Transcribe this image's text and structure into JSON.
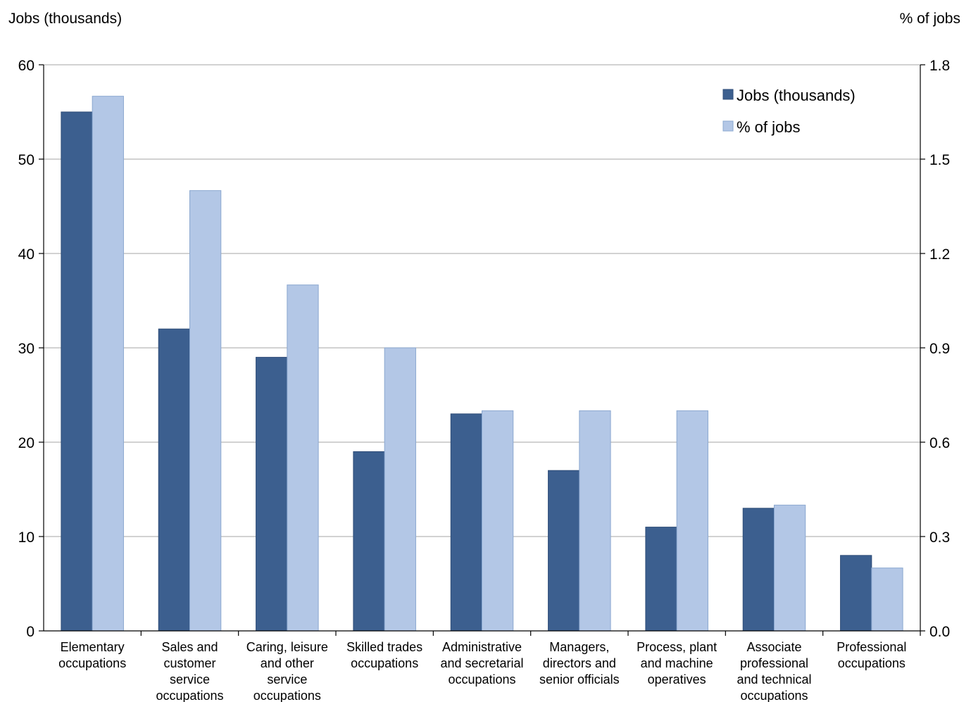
{
  "chart_data": {
    "type": "bar",
    "ylabel_left": "Jobs (thousands)",
    "ylabel_right": "% of jobs",
    "ylim_left": [
      0,
      60
    ],
    "ylim_right": [
      0,
      1.8
    ],
    "yticks_left": [
      "0",
      "10",
      "20",
      "30",
      "40",
      "50",
      "60"
    ],
    "yticks_right": [
      "0.0",
      "0.3",
      "0.6",
      "0.9",
      "1.2",
      "1.5",
      "1.8"
    ],
    "grid": true,
    "legend_position": "top-right",
    "categories": [
      [
        "Elementary",
        "occupations"
      ],
      [
        "Sales and",
        "customer",
        "service",
        "occupations"
      ],
      [
        "Caring, leisure",
        "and other",
        "service",
        "occupations"
      ],
      [
        "Skilled trades",
        "occupations"
      ],
      [
        "Administrative",
        "and secretarial",
        "occupations"
      ],
      [
        "Managers,",
        "directors and",
        "senior officials"
      ],
      [
        "Process, plant",
        "and machine",
        "operatives"
      ],
      [
        "Associate",
        "professional",
        "and technical",
        "occupations"
      ],
      [
        "Professional",
        "occupations"
      ]
    ],
    "series": [
      {
        "name": "Jobs (thousands)",
        "axis": "left",
        "color": "#3c5f8f",
        "values": [
          55,
          32,
          29,
          19,
          23,
          17,
          11,
          13,
          8
        ]
      },
      {
        "name": "% of jobs",
        "axis": "right",
        "color": "#b3c7e6",
        "values": [
          1.7,
          1.4,
          1.1,
          0.9,
          0.7,
          0.7,
          0.7,
          0.4,
          0.2
        ]
      }
    ]
  }
}
